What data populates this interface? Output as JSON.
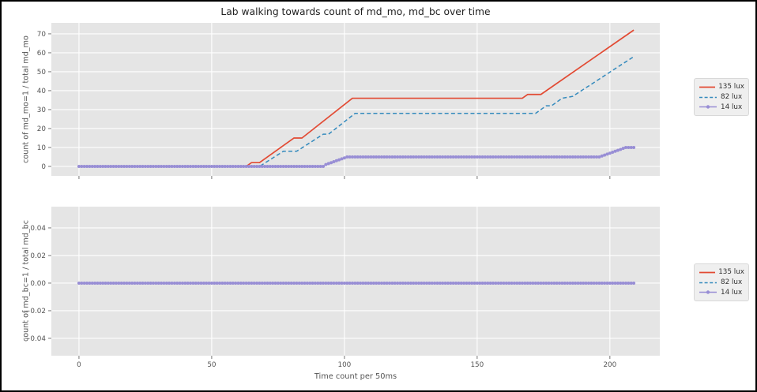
{
  "figure": {
    "title": "Lab walking towards count of md_mo, md_bc over time",
    "xlabel": "Time count per 50ms",
    "background": "#ffffff",
    "plot_background": "#e5e5e5",
    "grid_color": "#ffffff",
    "tick_color": "#666666",
    "text_color": "#555555",
    "title_color": "#1f1f1f"
  },
  "legend": {
    "position": "right-of-plots",
    "entries": [
      {
        "label": "135 lux",
        "color": "#e24a33",
        "style": "solid"
      },
      {
        "label": "82 lux",
        "color": "#348abd",
        "style": "dashed"
      },
      {
        "label": "14 lux",
        "color": "#988ed5",
        "style": "marker"
      }
    ]
  },
  "chart_data": [
    {
      "type": "line",
      "title": "Lab walking towards count of md_mo, md_bc over time",
      "ylabel": "count of md_mo=1 / total md_mo",
      "xlabel": "",
      "xlim": [
        -10.4,
        218.8
      ],
      "ylim": [
        -5.0,
        75.8
      ],
      "grid": true,
      "show_xtick_labels": false,
      "xticks": [
        {
          "v": 0,
          "label": "0"
        },
        {
          "v": 50,
          "label": "50"
        },
        {
          "v": 100,
          "label": "100"
        },
        {
          "v": 150,
          "label": "150"
        },
        {
          "v": 200,
          "label": "200"
        }
      ],
      "yticks": [
        {
          "v": 0,
          "label": "0"
        },
        {
          "v": 10,
          "label": "10"
        },
        {
          "v": 20,
          "label": "20"
        },
        {
          "v": 30,
          "label": "30"
        },
        {
          "v": 40,
          "label": "40"
        },
        {
          "v": 50,
          "label": "50"
        },
        {
          "v": 60,
          "label": "60"
        },
        {
          "v": 70,
          "label": "70"
        }
      ],
      "series": [
        {
          "name": "135 lux",
          "color": "#e24a33",
          "style": "solid",
          "points": [
            [
              0,
              0
            ],
            [
              63,
              0
            ],
            [
              65,
              2
            ],
            [
              68,
              2
            ],
            [
              81,
              15
            ],
            [
              84,
              15
            ],
            [
              103,
              36
            ],
            [
              167,
              36
            ],
            [
              169,
              38
            ],
            [
              174,
              38
            ],
            [
              209,
              72
            ]
          ]
        },
        {
          "name": "82 lux",
          "color": "#348abd",
          "style": "dashed",
          "points": [
            [
              0,
              0
            ],
            [
              68,
              0
            ],
            [
              77,
              8
            ],
            [
              82,
              8
            ],
            [
              92,
              17
            ],
            [
              94,
              17
            ],
            [
              104,
              28
            ],
            [
              172,
              28
            ],
            [
              176,
              32
            ],
            [
              178,
              32
            ],
            [
              182,
              36
            ],
            [
              186,
              37
            ],
            [
              209,
              58
            ]
          ]
        },
        {
          "name": "14 lux",
          "color": "#988ed5",
          "style": "marker",
          "points": [
            [
              0,
              0
            ],
            [
              92,
              0
            ],
            [
              93,
              1
            ],
            [
              95,
              2
            ],
            [
              97,
              3
            ],
            [
              99,
              4
            ],
            [
              101,
              5
            ],
            [
              196,
              5
            ],
            [
              198,
              6
            ],
            [
              200,
              7
            ],
            [
              202,
              8
            ],
            [
              204,
              9
            ],
            [
              206,
              10
            ],
            [
              209,
              10
            ]
          ]
        }
      ]
    },
    {
      "type": "line",
      "title": "",
      "ylabel": "count of md_bc=1 / total md_bc",
      "xlabel": "Time count per 50ms",
      "xlim": [
        -10.4,
        218.8
      ],
      "ylim": [
        -0.0526,
        0.0554
      ],
      "grid": true,
      "show_xtick_labels": true,
      "xticks": [
        {
          "v": 0,
          "label": "0"
        },
        {
          "v": 50,
          "label": "50"
        },
        {
          "v": 100,
          "label": "100"
        },
        {
          "v": 150,
          "label": "150"
        },
        {
          "v": 200,
          "label": "200"
        }
      ],
      "yticks": [
        {
          "v": -0.04,
          "label": "−0.04"
        },
        {
          "v": -0.02,
          "label": "−0.02"
        },
        {
          "v": 0.0,
          "label": "0.00"
        },
        {
          "v": 0.02,
          "label": "0.02"
        },
        {
          "v": 0.04,
          "label": "0.04"
        }
      ],
      "series": [
        {
          "name": "135 lux",
          "color": "#e24a33",
          "style": "solid",
          "points": [
            [
              0,
              0
            ],
            [
              209,
              0
            ]
          ]
        },
        {
          "name": "82 lux",
          "color": "#348abd",
          "style": "dashed",
          "points": [
            [
              0,
              0
            ],
            [
              209,
              0
            ]
          ]
        },
        {
          "name": "14 lux",
          "color": "#988ed5",
          "style": "marker",
          "points": [
            [
              0,
              0
            ],
            [
              209,
              0
            ]
          ]
        }
      ]
    }
  ]
}
